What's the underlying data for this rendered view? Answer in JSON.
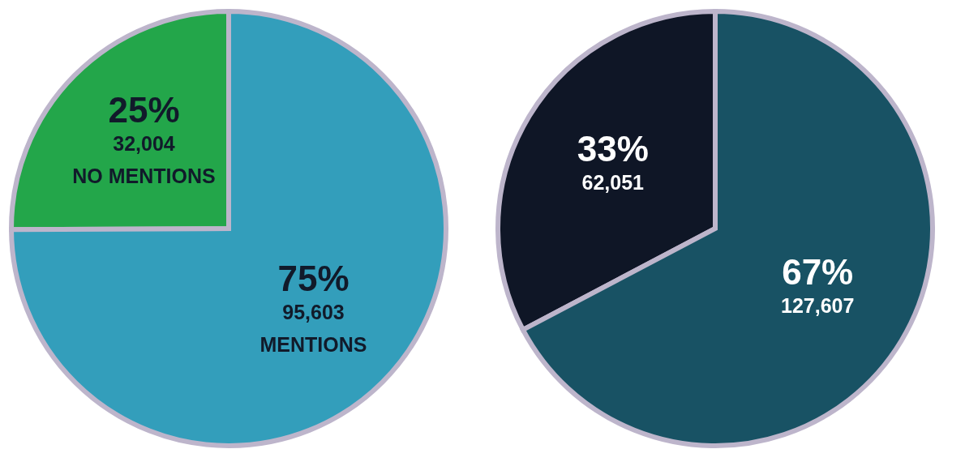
{
  "chart_data": [
    {
      "type": "pie",
      "categories": [
        "NO MENTIONS",
        "MENTIONS"
      ],
      "values": [
        32004,
        95603
      ],
      "colors": [
        "#23a64a",
        "#339ebb"
      ],
      "value_labels": [
        "25%\n32,004",
        "75%\n95,603"
      ],
      "legend": false
    },
    {
      "type": "pie",
      "categories": [
        null,
        null
      ],
      "values": [
        62051,
        127607
      ],
      "colors": [
        "#0f1626",
        "#185264"
      ],
      "value_labels": [
        "33%\n62,051",
        "67%\n127,607"
      ],
      "legend": false
    }
  ]
}
